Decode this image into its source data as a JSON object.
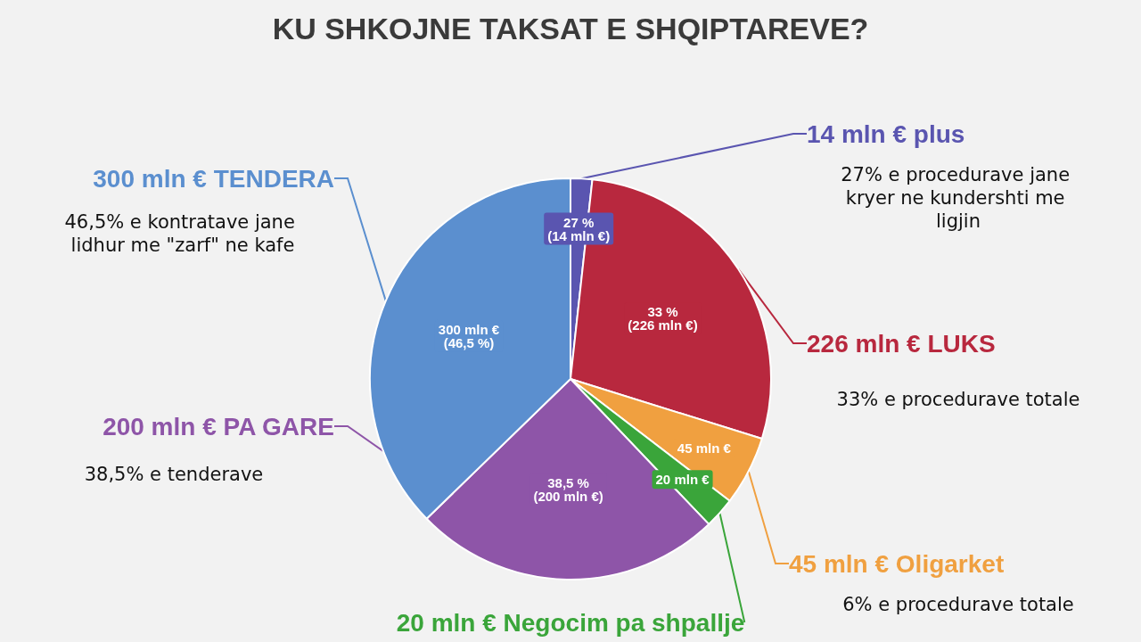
{
  "chart_data": {
    "type": "pie",
    "title": "KU SHKOJNE TAKSAT E SHQIPTAREVE?",
    "categories": [
      "14 mln € plus",
      "226 mln € LUKS",
      "45 mln € Oligarket",
      "20 mln € Negocim pa shpallje",
      "200 mln € PA GARE",
      "300 mln € TENDERA"
    ],
    "values": [
      14,
      226,
      45,
      20,
      200,
      300
    ],
    "value_labels": [
      "27 %\n(14 mln €)",
      "33 %\n(226 mln €)",
      "45 mln €",
      "20 mln €",
      "38,5 %\n(200 mln €)",
      "300 mln €\n(46,5 %)"
    ],
    "colors": [
      "#5a55b0",
      "#b8283e",
      "#f0a040",
      "#3aa53a",
      "#8e55a8",
      "#5b8fcf"
    ],
    "annotations": [
      "27% e procedurave jane kryer ne kundershti me ligjin",
      "33% e procedurave totale",
      "6% e procedurave totale",
      "38,5% e tenderave",
      "46,5% e kontratave jane lidhur me \"zarf\" ne kafe"
    ],
    "legend": false
  }
}
